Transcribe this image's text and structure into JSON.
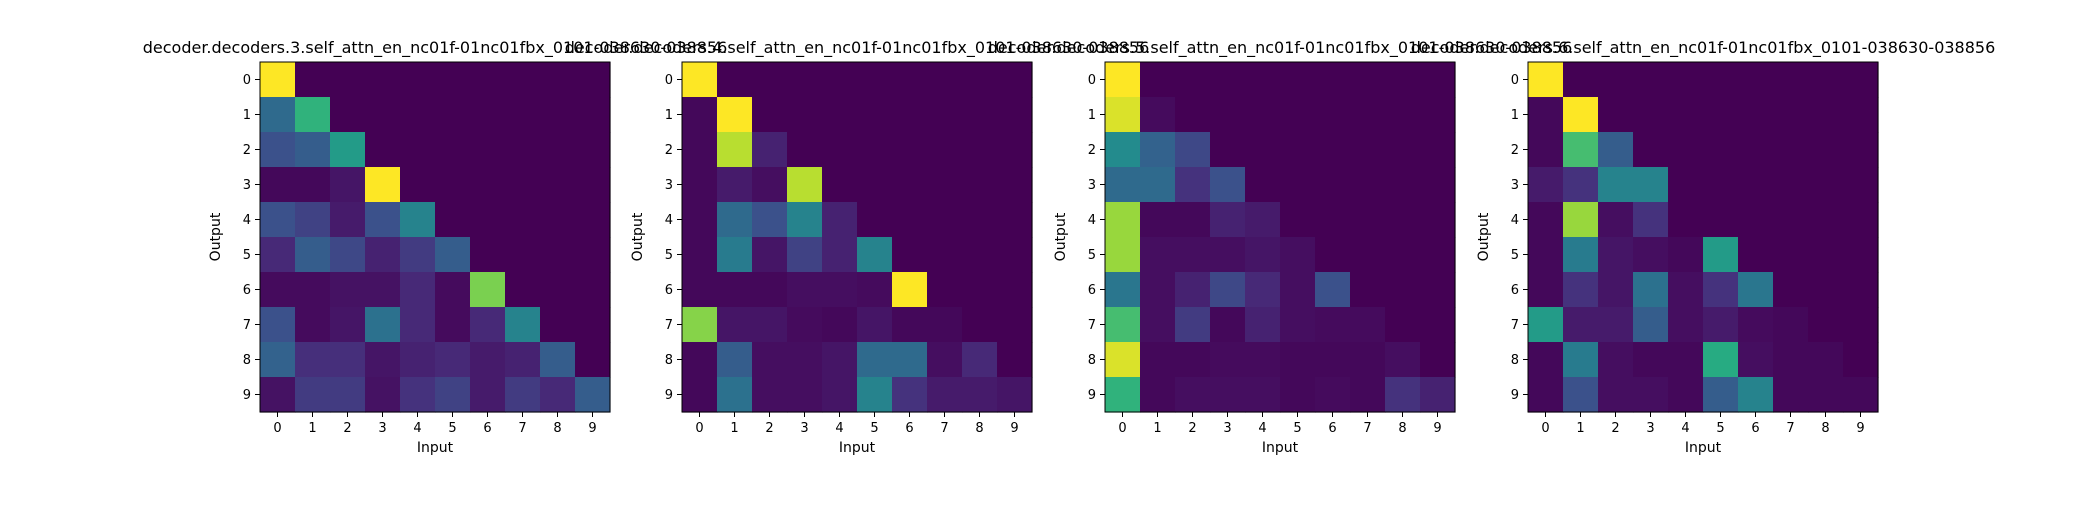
{
  "chart_data": [
    {
      "type": "heatmap",
      "title": "decoder.decoders.3.self_attn_en_nc01f-01nc01fbx_0101-038630-038856",
      "xlabel": "Input",
      "ylabel": "Output",
      "x_ticks": [
        "0",
        "1",
        "2",
        "3",
        "4",
        "5",
        "6",
        "7",
        "8",
        "9"
      ],
      "y_ticks": [
        "0",
        "1",
        "2",
        "3",
        "4",
        "5",
        "6",
        "7",
        "8",
        "9"
      ],
      "colormap": "viridis",
      "z": [
        [
          1.0,
          0,
          0,
          0,
          0,
          0,
          0,
          0,
          0,
          0
        ],
        [
          0.35,
          0.65,
          0,
          0,
          0,
          0,
          0,
          0,
          0,
          0
        ],
        [
          0.25,
          0.3,
          0.55,
          0,
          0,
          0,
          0,
          0,
          0,
          0
        ],
        [
          0.02,
          0.02,
          0.06,
          1.0,
          0,
          0,
          0,
          0,
          0,
          0
        ],
        [
          0.25,
          0.2,
          0.08,
          0.25,
          0.45,
          0,
          0,
          0,
          0,
          0
        ],
        [
          0.12,
          0.3,
          0.22,
          0.1,
          0.18,
          0.3,
          0,
          0,
          0,
          0
        ],
        [
          0.03,
          0.03,
          0.05,
          0.05,
          0.12,
          0.03,
          0.8,
          0,
          0,
          0
        ],
        [
          0.25,
          0.03,
          0.06,
          0.38,
          0.12,
          0.03,
          0.12,
          0.45,
          0,
          0
        ],
        [
          0.32,
          0.14,
          0.14,
          0.06,
          0.1,
          0.12,
          0.08,
          0.1,
          0.3,
          0
        ],
        [
          0.05,
          0.18,
          0.18,
          0.05,
          0.15,
          0.2,
          0.08,
          0.18,
          0.12,
          0.3
        ]
      ]
    },
    {
      "type": "heatmap",
      "title": "decoder.decoders.4.self_attn_en_nc01f-01nc01fbx_0101-038630-038856",
      "xlabel": "Input",
      "ylabel": "Output",
      "x_ticks": [
        "0",
        "1",
        "2",
        "3",
        "4",
        "5",
        "6",
        "7",
        "8",
        "9"
      ],
      "y_ticks": [
        "0",
        "1",
        "2",
        "3",
        "4",
        "5",
        "6",
        "7",
        "8",
        "9"
      ],
      "colormap": "viridis",
      "z": [
        [
          1.0,
          0,
          0,
          0,
          0,
          0,
          0,
          0,
          0,
          0
        ],
        [
          0.02,
          1.0,
          0,
          0,
          0,
          0,
          0,
          0,
          0,
          0
        ],
        [
          0.02,
          0.9,
          0.1,
          0,
          0,
          0,
          0,
          0,
          0,
          0
        ],
        [
          0.02,
          0.08,
          0.04,
          0.9,
          0,
          0,
          0,
          0,
          0,
          0
        ],
        [
          0.02,
          0.35,
          0.25,
          0.45,
          0.1,
          0,
          0,
          0,
          0,
          0
        ],
        [
          0.02,
          0.42,
          0.06,
          0.2,
          0.1,
          0.45,
          0,
          0,
          0,
          0
        ],
        [
          0.02,
          0.02,
          0.02,
          0.04,
          0.04,
          0.03,
          1.0,
          0,
          0,
          0
        ],
        [
          0.82,
          0.06,
          0.06,
          0.03,
          0.02,
          0.06,
          0.02,
          0.02,
          0,
          0
        ],
        [
          0.02,
          0.3,
          0.04,
          0.04,
          0.06,
          0.35,
          0.35,
          0.04,
          0.12,
          0
        ],
        [
          0.02,
          0.38,
          0.04,
          0.04,
          0.06,
          0.45,
          0.15,
          0.08,
          0.08,
          0.06
        ]
      ]
    },
    {
      "type": "heatmap",
      "title": "decoder.decoders.5.self_attn_en_nc01f-01nc01fbx_0101-038630-038856",
      "xlabel": "Input",
      "ylabel": "Output",
      "x_ticks": [
        "0",
        "1",
        "2",
        "3",
        "4",
        "5",
        "6",
        "7",
        "8",
        "9"
      ],
      "y_ticks": [
        "0",
        "1",
        "2",
        "3",
        "4",
        "5",
        "6",
        "7",
        "8",
        "9"
      ],
      "colormap": "viridis",
      "z": [
        [
          1.0,
          0,
          0,
          0,
          0,
          0,
          0,
          0,
          0,
          0
        ],
        [
          0.95,
          0.03,
          0,
          0,
          0,
          0,
          0,
          0,
          0,
          0
        ],
        [
          0.48,
          0.32,
          0.22,
          0,
          0,
          0,
          0,
          0,
          0,
          0
        ],
        [
          0.35,
          0.35,
          0.15,
          0.25,
          0,
          0,
          0,
          0,
          0,
          0
        ],
        [
          0.85,
          0.02,
          0.02,
          0.1,
          0.08,
          0,
          0,
          0,
          0,
          0
        ],
        [
          0.85,
          0.04,
          0.04,
          0.04,
          0.06,
          0.04,
          0,
          0,
          0,
          0
        ],
        [
          0.4,
          0.04,
          0.1,
          0.22,
          0.12,
          0.04,
          0.25,
          0,
          0,
          0
        ],
        [
          0.7,
          0.04,
          0.18,
          0.02,
          0.1,
          0.04,
          0.03,
          0.03,
          0,
          0
        ],
        [
          0.95,
          0.02,
          0.02,
          0.03,
          0.03,
          0.02,
          0.02,
          0.02,
          0.04,
          0
        ],
        [
          0.65,
          0.02,
          0.04,
          0.04,
          0.04,
          0.02,
          0.03,
          0.02,
          0.15,
          0.1
        ]
      ]
    },
    {
      "type": "heatmap",
      "title": "decoder.decoders.6.self_attn_en_nc01f-01nc01fbx_0101-038630-038856",
      "xlabel": "Input",
      "ylabel": "Output",
      "x_ticks": [
        "0",
        "1",
        "2",
        "3",
        "4",
        "5",
        "6",
        "7",
        "8",
        "9"
      ],
      "y_ticks": [
        "0",
        "1",
        "2",
        "3",
        "4",
        "5",
        "6",
        "7",
        "8",
        "9"
      ],
      "colormap": "viridis",
      "z": [
        [
          1.0,
          0,
          0,
          0,
          0,
          0,
          0,
          0,
          0,
          0
        ],
        [
          0.02,
          1.0,
          0,
          0,
          0,
          0,
          0,
          0,
          0,
          0
        ],
        [
          0.02,
          0.7,
          0.3,
          0,
          0,
          0,
          0,
          0,
          0,
          0
        ],
        [
          0.08,
          0.15,
          0.45,
          0.45,
          0,
          0,
          0,
          0,
          0,
          0
        ],
        [
          0.02,
          0.85,
          0.04,
          0.15,
          0,
          0,
          0,
          0,
          0,
          0
        ],
        [
          0.02,
          0.42,
          0.06,
          0.04,
          0.02,
          0.55,
          0,
          0,
          0,
          0
        ],
        [
          0.02,
          0.15,
          0.06,
          0.38,
          0.04,
          0.15,
          0.4,
          0,
          0,
          0
        ],
        [
          0.55,
          0.08,
          0.08,
          0.3,
          0.04,
          0.08,
          0.03,
          0.02,
          0,
          0
        ],
        [
          0.02,
          0.42,
          0.04,
          0.02,
          0.02,
          0.62,
          0.04,
          0.02,
          0.02,
          0
        ],
        [
          0.02,
          0.25,
          0.04,
          0.04,
          0.02,
          0.3,
          0.45,
          0.02,
          0.02,
          0.02
        ]
      ]
    }
  ]
}
